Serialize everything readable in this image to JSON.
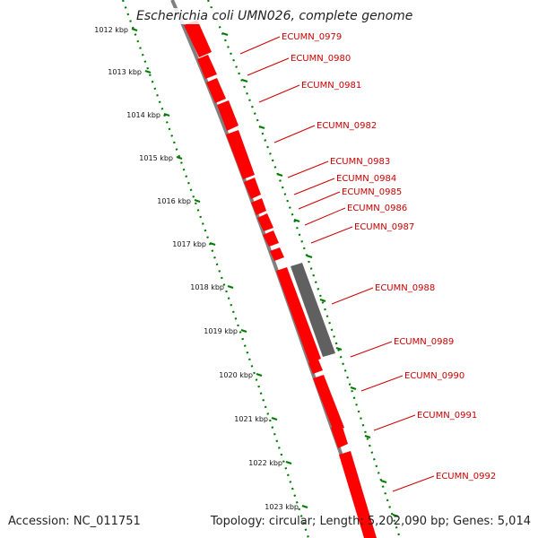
{
  "title": "Escherichia coli UMN026, complete genome",
  "accession": "Accession: NC_011751",
  "summary": "Topology: circular; Length: 5,202,090 bp; Genes: 5,014",
  "colors": {
    "gene": "#ff0000",
    "gene_highlight": "#ff6a6a",
    "pseudo_gene": "#606060",
    "backbone": "#808080",
    "tick": "#007a00",
    "label": "#cc0000"
  },
  "scale": {
    "tick_labels": [
      "1012 kbp",
      "1013 kbp",
      "1014 kbp",
      "1015 kbp",
      "1016 kbp",
      "1017 kbp",
      "1018 kbp",
      "1019 kbp",
      "1020 kbp",
      "1021 kbp",
      "1022 kbp",
      "1023 kbp"
    ]
  },
  "gene_labels": [
    "ECUMN_0979",
    "ECUMN_0980",
    "ECUMN_0981",
    "ECUMN_0982",
    "ECUMN_0983",
    "ECUMN_0984",
    "ECUMN_0985",
    "ECUMN_0986",
    "ECUMN_0987",
    "ECUMN_0988",
    "ECUMN_0989",
    "ECUMN_0990",
    "ECUMN_0991",
    "ECUMN_0992"
  ]
}
